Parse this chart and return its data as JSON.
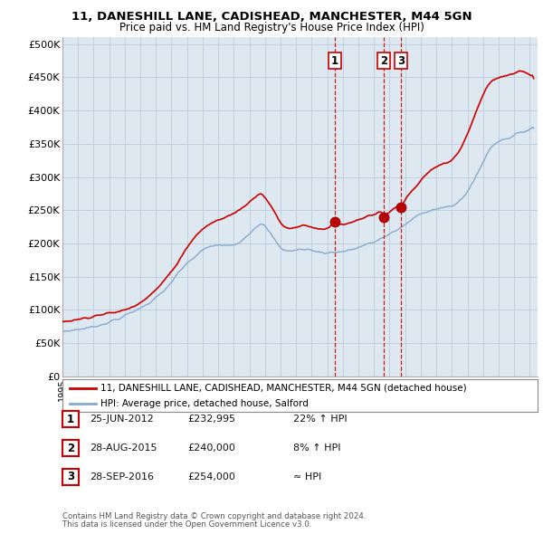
{
  "title1": "11, DANESHILL LANE, CADISHEAD, MANCHESTER, M44 5GN",
  "title2": "Price paid vs. HM Land Registry's House Price Index (HPI)",
  "xlim_start": 1995.0,
  "xlim_end": 2025.5,
  "ylim": [
    0,
    510000
  ],
  "yticks": [
    0,
    50000,
    100000,
    150000,
    200000,
    250000,
    300000,
    350000,
    400000,
    450000,
    500000
  ],
  "ytick_labels": [
    "£0",
    "£50K",
    "£100K",
    "£150K",
    "£200K",
    "£250K",
    "£300K",
    "£350K",
    "£400K",
    "£450K",
    "£500K"
  ],
  "transaction_dates": [
    2012.48,
    2015.65,
    2016.74
  ],
  "transaction_prices": [
    232995,
    240000,
    254000
  ],
  "transaction_labels": [
    "1",
    "2",
    "3"
  ],
  "legend_line1": "11, DANESHILL LANE, CADISHEAD, MANCHESTER, M44 5GN (detached house)",
  "legend_line2": "HPI: Average price, detached house, Salford",
  "table_data": [
    [
      "1",
      "25-JUN-2012",
      "£232,995",
      "22% ↑ HPI"
    ],
    [
      "2",
      "28-AUG-2015",
      "£240,000",
      "8% ↑ HPI"
    ],
    [
      "3",
      "28-SEP-2016",
      "£254,000",
      "≈ HPI"
    ]
  ],
  "footnote1": "Contains HM Land Registry data © Crown copyright and database right 2024.",
  "footnote2": "This data is licensed under the Open Government Licence v3.0.",
  "line_color_red": "#cc0000",
  "line_color_blue": "#88aacc",
  "dashed_line_color": "#cc0000",
  "chart_bg": "#dde8f0",
  "bg_color": "#ffffff",
  "grid_color": "#bbccdd"
}
